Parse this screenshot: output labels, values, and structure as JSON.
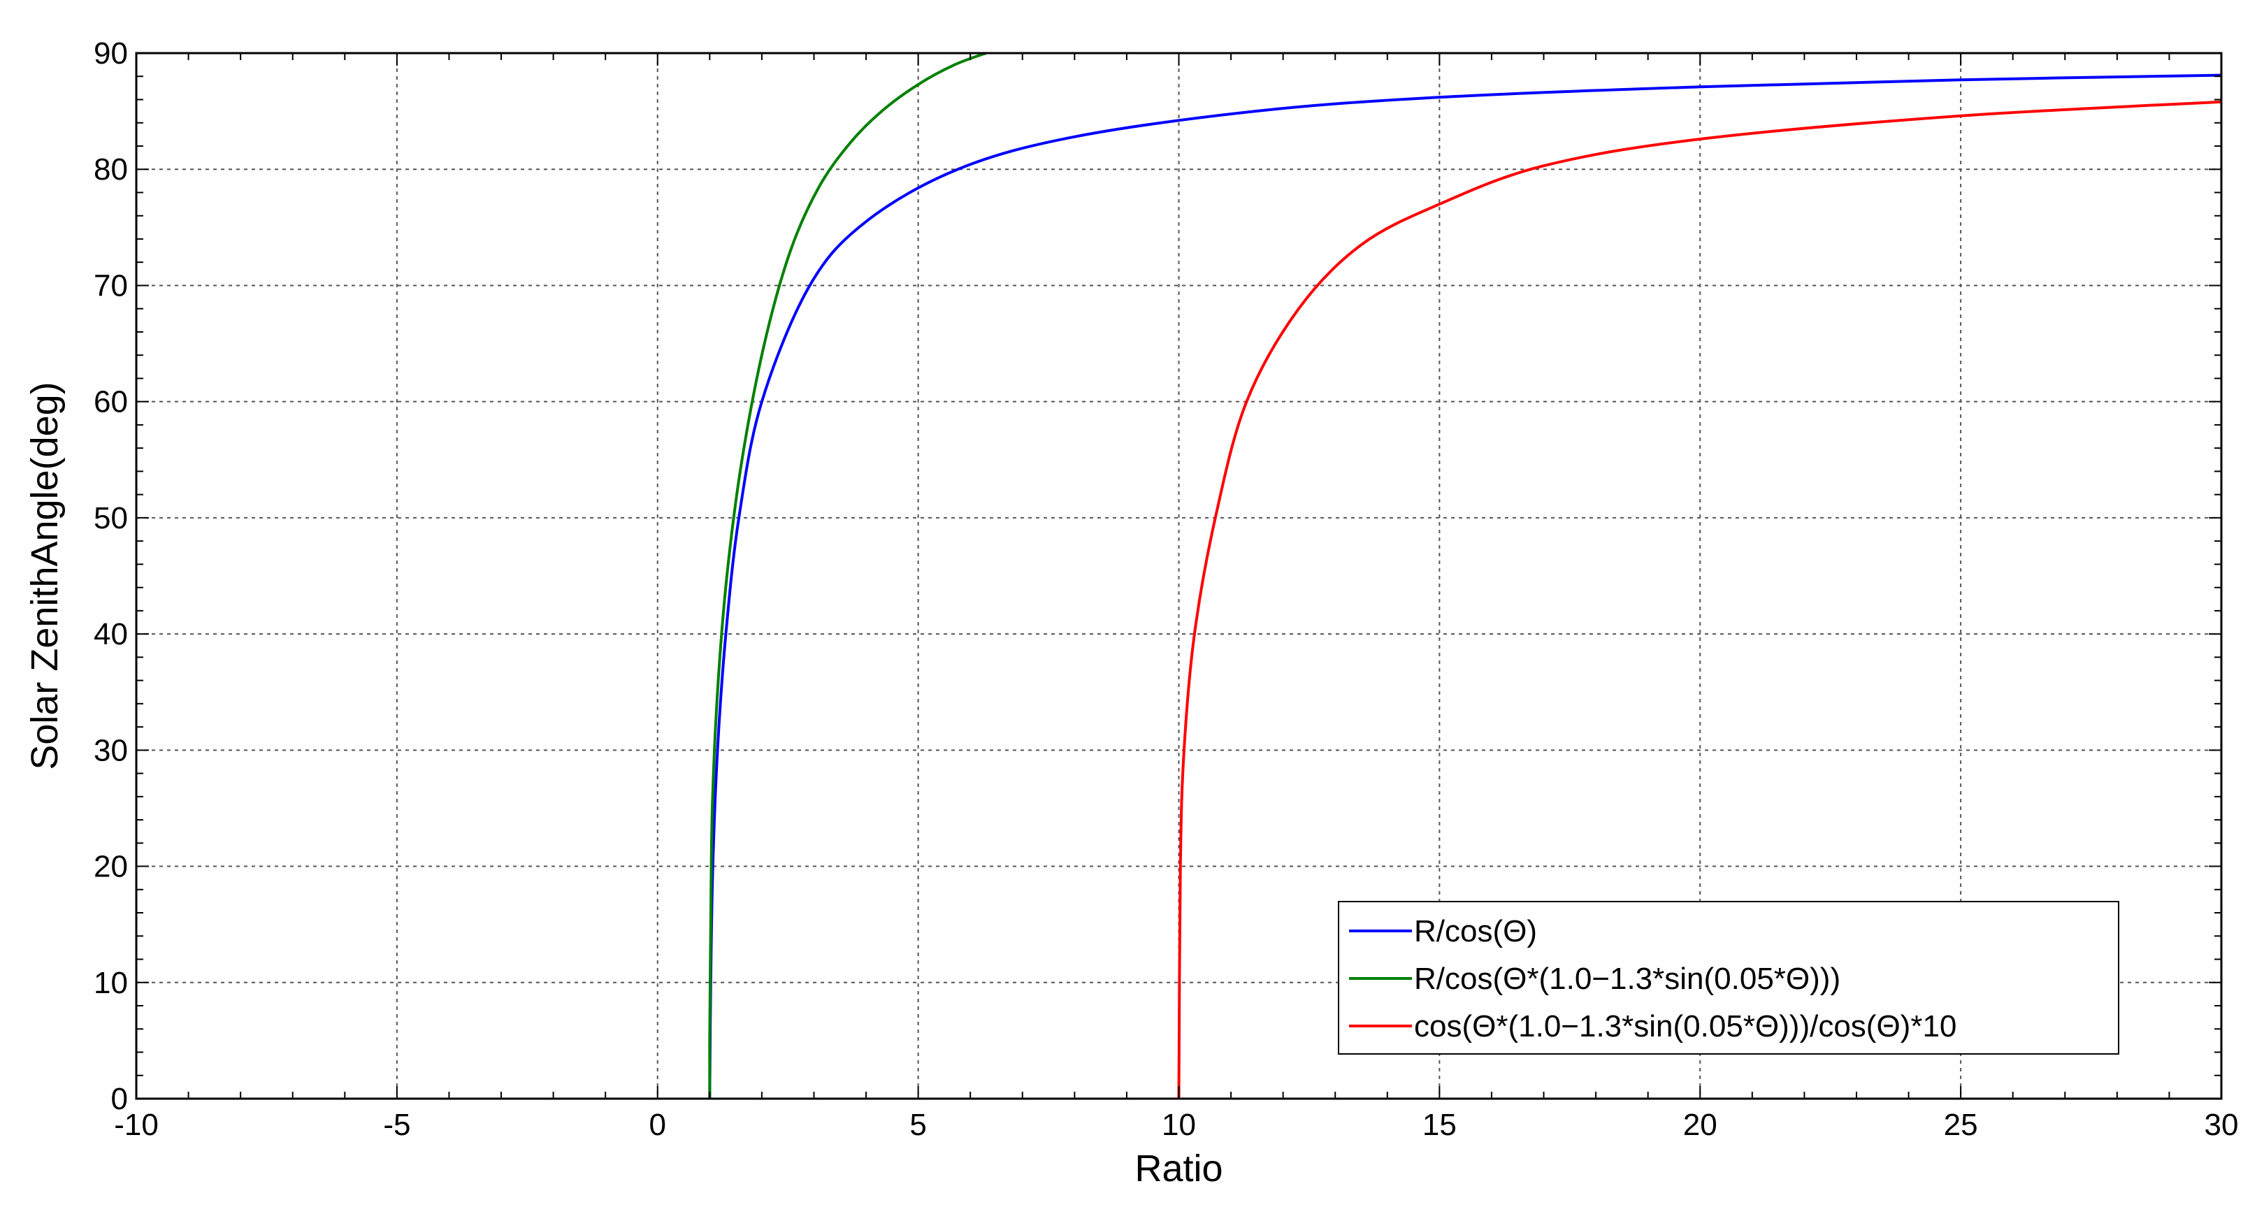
{
  "chart_data": {
    "type": "line",
    "title": "",
    "xlabel": "Ratio",
    "ylabel": "Solar ZenithAngle(deg)",
    "xlim": [
      -10,
      30
    ],
    "ylim": [
      0,
      90
    ],
    "xticks": [
      -10,
      -5,
      0,
      5,
      10,
      15,
      20,
      25,
      30
    ],
    "yticks": [
      0,
      10,
      20,
      30,
      40,
      50,
      60,
      70,
      80,
      90
    ],
    "grid": true,
    "legend_position": "bottom-right",
    "series": [
      {
        "name": "R/cos(Θ)",
        "color": "#0000ff",
        "points": [
          [
            1.0,
            0
          ],
          [
            1.02,
            10
          ],
          [
            1.06,
            20
          ],
          [
            1.15,
            30
          ],
          [
            1.31,
            40
          ],
          [
            1.56,
            50
          ],
          [
            2.0,
            60
          ],
          [
            2.92,
            70
          ],
          [
            4.0,
            75.5
          ],
          [
            5.76,
            80
          ],
          [
            8.0,
            82.8
          ],
          [
            11.47,
            85
          ],
          [
            15.0,
            86.2
          ],
          [
            20.0,
            87.1
          ],
          [
            25.0,
            87.7
          ],
          [
            30.0,
            88.1
          ]
        ]
      },
      {
        "name": "R/cos(Θ*(1.0−1.3*sin(0.05*Θ)))",
        "color": "#008000",
        "points": [
          [
            1.0,
            0
          ],
          [
            1.0,
            5
          ],
          [
            1.02,
            15
          ],
          [
            1.05,
            25
          ],
          [
            1.15,
            35
          ],
          [
            1.33,
            45
          ],
          [
            1.62,
            55
          ],
          [
            2.05,
            65
          ],
          [
            2.55,
            73
          ],
          [
            3.1,
            78.5
          ],
          [
            3.7,
            82.3
          ],
          [
            4.3,
            85
          ],
          [
            5.0,
            87.3
          ],
          [
            5.7,
            89
          ],
          [
            6.3,
            90
          ]
        ]
      },
      {
        "name": "cos(Θ*(1.0−1.3*sin(0.05*Θ)))/cos(Θ)*10",
        "color": "#ff0000",
        "points": [
          [
            10.0,
            0
          ],
          [
            10.03,
            20
          ],
          [
            10.1,
            30
          ],
          [
            10.3,
            40
          ],
          [
            10.7,
            50
          ],
          [
            11.3,
            60
          ],
          [
            12.3,
            68
          ],
          [
            13.5,
            73.5
          ],
          [
            15.0,
            77
          ],
          [
            17.0,
            80.3
          ],
          [
            20.0,
            82.6
          ],
          [
            25.0,
            84.6
          ],
          [
            30.0,
            85.8
          ]
        ]
      }
    ]
  }
}
